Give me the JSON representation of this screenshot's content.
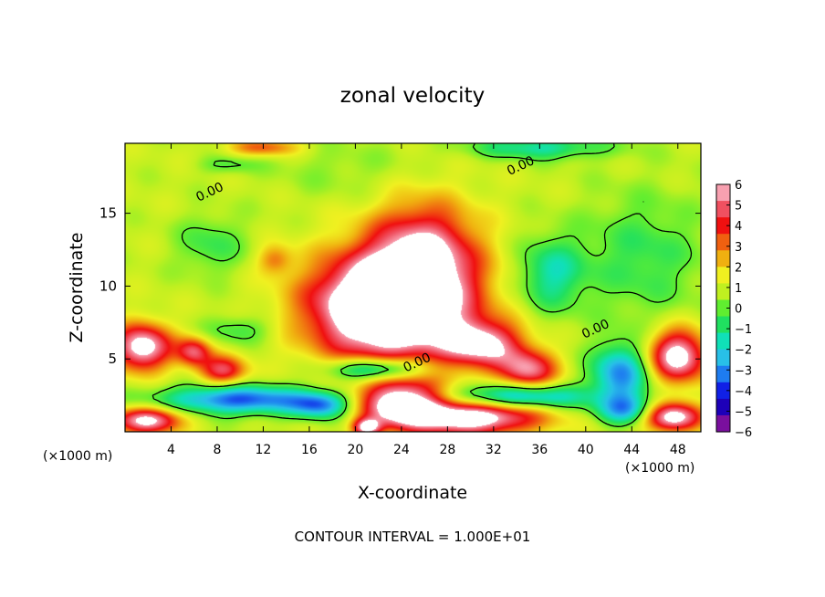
{
  "chart_data": {
    "type": "heatmap",
    "title": "zonal velocity",
    "xlabel": "X-coordinate",
    "ylabel": "Z-coordinate",
    "x_unit_left": "(×1000 m)",
    "x_unit_right": "(×1000 m)",
    "xlim": [
      0,
      50
    ],
    "ylim": [
      0,
      19.8
    ],
    "x_ticks": [
      4,
      8,
      12,
      16,
      20,
      24,
      28,
      32,
      36,
      40,
      44,
      48
    ],
    "y_ticks": [
      5,
      10,
      15
    ],
    "footer": "CONTOUR INTERVAL = 1.000E+01",
    "colorbar": {
      "labels": [
        "6",
        "5",
        "4",
        "3",
        "2",
        "1",
        "0",
        "−1",
        "−2",
        "−3",
        "−4",
        "−5",
        "−6"
      ],
      "min": -6,
      "max": 6,
      "colors": [
        "#7a0f9e",
        "#1d00b8",
        "#1020e6",
        "#1e7cf0",
        "#28c0e8",
        "#10e0b8",
        "#20e060",
        "#60ee30",
        "#c0f020",
        "#f0f020",
        "#f0b010",
        "#f06010",
        "#f01010",
        "#f05060",
        "#f8a0b0"
      ]
    },
    "contour_labels": [
      {
        "text": "0.00",
        "x": 7.5,
        "z": 16.2
      },
      {
        "text": "0.00",
        "x": 34.5,
        "z": 18.0
      },
      {
        "text": "0.00",
        "x": 41.0,
        "z": 6.8
      },
      {
        "text": "0.00",
        "x": 25.5,
        "z": 4.5
      }
    ],
    "features": [
      {
        "kind": "positive_max",
        "cx": 21.5,
        "cz": 8.5,
        "rx": 6.0,
        "rz": 3.4,
        "amp": 6.0
      },
      {
        "kind": "positive_max",
        "cx": 25.0,
        "cz": 9.0,
        "rx": 6.0,
        "rz": 4.0,
        "amp": 4.5
      },
      {
        "kind": "positive",
        "cx": 26.0,
        "cz": 12.5,
        "rx": 4.5,
        "rz": 3.5,
        "amp": 3.8
      },
      {
        "kind": "positive",
        "cx": 31.0,
        "cz": 6.0,
        "rx": 3.5,
        "rz": 1.6,
        "amp": 5.0
      },
      {
        "kind": "positive",
        "cx": 35.0,
        "cz": 4.2,
        "rx": 2.5,
        "rz": 1.4,
        "amp": 4.5
      },
      {
        "kind": "positive",
        "cx": 1.5,
        "cz": 5.8,
        "rx": 2.5,
        "rz": 1.6,
        "amp": 6.0
      },
      {
        "kind": "positive",
        "cx": 6.0,
        "cz": 5.5,
        "rx": 1.5,
        "rz": 1.0,
        "amp": 4.0
      },
      {
        "kind": "positive",
        "cx": 8.5,
        "cz": 4.2,
        "rx": 2.0,
        "rz": 1.0,
        "amp": 4.0
      },
      {
        "kind": "positive",
        "cx": 48.0,
        "cz": 5.2,
        "rx": 2.5,
        "rz": 1.8,
        "amp": 6.0
      },
      {
        "kind": "positive",
        "cx": 24.0,
        "cz": 2.0,
        "rx": 3.5,
        "rz": 1.6,
        "amp": 6.0
      },
      {
        "kind": "positive",
        "cx": 30.0,
        "cz": 1.0,
        "rx": 6.0,
        "rz": 1.2,
        "amp": 6.5
      },
      {
        "kind": "positive",
        "cx": 2.0,
        "cz": 0.8,
        "rx": 3.0,
        "rz": 0.9,
        "amp": 5.5
      },
      {
        "kind": "positive",
        "cx": 47.5,
        "cz": 1.0,
        "rx": 2.5,
        "rz": 1.0,
        "amp": 6.0
      },
      {
        "kind": "positive",
        "cx": 21.0,
        "cz": 0.3,
        "rx": 1.2,
        "rz": 0.6,
        "amp": 5.0
      },
      {
        "kind": "positive",
        "cx": 13.0,
        "cz": 11.8,
        "rx": 1.5,
        "rz": 1.0,
        "amp": 2.0
      },
      {
        "kind": "positive",
        "cx": 12.0,
        "cz": 19.5,
        "rx": 3.0,
        "rz": 0.6,
        "amp": 2.5
      },
      {
        "kind": "negative",
        "cx": 10.0,
        "cz": 2.2,
        "rx": 7.0,
        "rz": 1.0,
        "amp": -4.8
      },
      {
        "kind": "negative",
        "cx": 22.0,
        "cz": 4.3,
        "rx": 4.0,
        "rz": 0.8,
        "amp": -4.5
      },
      {
        "kind": "negative",
        "cx": 34.0,
        "cz": 2.4,
        "rx": 6.0,
        "rz": 0.9,
        "amp": -4.5
      },
      {
        "kind": "negative",
        "cx": 43.0,
        "cz": 4.0,
        "rx": 2.5,
        "rz": 2.0,
        "amp": -4.2
      },
      {
        "kind": "negative",
        "cx": 43.5,
        "cz": 1.5,
        "rx": 2.5,
        "rz": 1.0,
        "amp": -3.5
      },
      {
        "kind": "negative",
        "cx": 17.0,
        "cz": 1.8,
        "rx": 2.5,
        "rz": 0.9,
        "amp": -3.5
      },
      {
        "kind": "negative",
        "cx": 37.0,
        "cz": 10.8,
        "rx": 3.0,
        "rz": 2.5,
        "amp": -2.6
      },
      {
        "kind": "negative",
        "cx": 45.0,
        "cz": 12.0,
        "rx": 5.0,
        "rz": 4.0,
        "amp": -1.3
      },
      {
        "kind": "negative",
        "cx": 7.5,
        "cz": 12.8,
        "rx": 3.0,
        "rz": 2.0,
        "amp": -1.5
      },
      {
        "kind": "negative",
        "cx": 10.0,
        "cz": 7.0,
        "rx": 3.0,
        "rz": 1.0,
        "amp": -1.5
      },
      {
        "kind": "negative",
        "cx": 36.0,
        "cz": 19.5,
        "rx": 6.0,
        "rz": 0.8,
        "amp": -2.5
      },
      {
        "kind": "negative",
        "cx": 9.0,
        "cz": 18.3,
        "rx": 2.5,
        "rz": 0.6,
        "amp": -1.2
      },
      {
        "kind": "negative",
        "cx": 19.0,
        "cz": 18.0,
        "rx": 6.0,
        "rz": 2.0,
        "amp": -0.6
      }
    ]
  }
}
